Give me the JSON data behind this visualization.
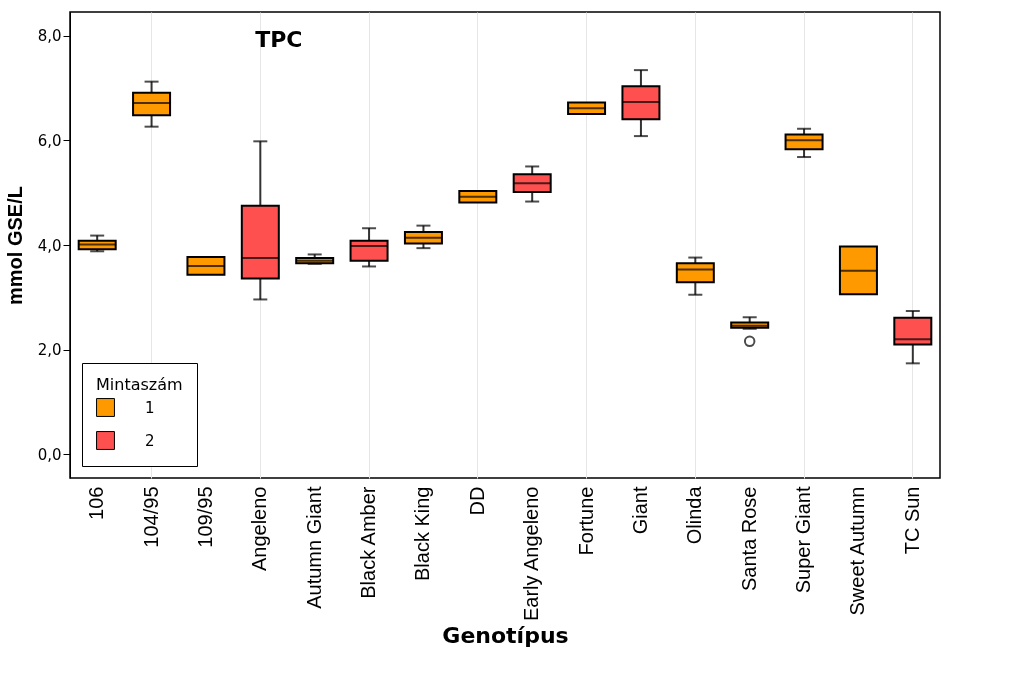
{
  "chart_data": {
    "type": "box",
    "title": "TPC",
    "xlabel": "Genotípus",
    "ylabel": "mmol GSE/L",
    "legend_title": "Mintaszám",
    "categories": [
      "106",
      "104/95",
      "109/95",
      "Angeleno",
      "Autumn Giant",
      "Black Amber",
      "Black King",
      "DD",
      "Early Angeleno",
      "Fortune",
      "Giant",
      "Olinda",
      "Santa Rose",
      "Super Giant",
      "Sweet Autumn",
      "TC Sun"
    ],
    "series": [
      {
        "name": "1",
        "color": "#ff9900",
        "boxes": [
          {
            "low": 3.88,
            "q1": 3.92,
            "median": 4.01,
            "q3": 4.08,
            "high": 4.18
          },
          {
            "low": 6.26,
            "q1": 6.48,
            "median": 6.71,
            "q3": 6.91,
            "high": 7.12
          },
          {
            "low": 3.43,
            "q1": 3.43,
            "median": 3.6,
            "q3": 3.77,
            "high": 3.77
          },
          null,
          {
            "low": 3.64,
            "q1": 3.65,
            "median": 3.7,
            "q3": 3.75,
            "high": 3.82
          },
          null,
          {
            "low": 3.94,
            "q1": 4.03,
            "median": 4.14,
            "q3": 4.25,
            "high": 4.37
          },
          {
            "low": 4.81,
            "q1": 4.81,
            "median": 4.92,
            "q3": 5.03,
            "high": 5.03
          },
          null,
          {
            "low": 6.5,
            "q1": 6.5,
            "median": 6.61,
            "q3": 6.72,
            "high": 6.72
          },
          null,
          {
            "low": 3.05,
            "q1": 3.29,
            "median": 3.53,
            "q3": 3.65,
            "high": 3.76
          },
          {
            "low": 2.4,
            "q1": 2.42,
            "median": 2.46,
            "q3": 2.52,
            "high": 2.62,
            "outliers": [
              2.16
            ]
          },
          {
            "low": 5.68,
            "q1": 5.83,
            "median": 6.0,
            "q3": 6.11,
            "high": 6.22
          },
          {
            "low": 3.06,
            "q1": 3.06,
            "median": 3.51,
            "q3": 3.97,
            "high": 3.97
          },
          null
        ]
      },
      {
        "name": "2",
        "color": "#ff5050",
        "boxes": [
          null,
          null,
          null,
          {
            "low": 2.96,
            "q1": 3.36,
            "median": 3.75,
            "q3": 4.75,
            "high": 5.98
          },
          null,
          {
            "low": 3.59,
            "q1": 3.7,
            "median": 3.98,
            "q3": 4.08,
            "high": 4.32
          },
          null,
          null,
          {
            "low": 4.83,
            "q1": 5.01,
            "median": 5.18,
            "q3": 5.35,
            "high": 5.5
          },
          null,
          {
            "low": 6.08,
            "q1": 6.4,
            "median": 6.73,
            "q3": 7.03,
            "high": 7.34
          },
          null,
          null,
          null,
          null,
          {
            "low": 1.74,
            "q1": 2.1,
            "median": 2.2,
            "q3": 2.61,
            "high": 2.74
          }
        ]
      }
    ],
    "ylim": [
      -0.45,
      8.45
    ],
    "yticks": [
      {
        "value": 0,
        "label": "0,0"
      },
      {
        "value": 2,
        "label": "2,0"
      },
      {
        "value": 4,
        "label": "4,0"
      },
      {
        "value": 6,
        "label": "6,0"
      },
      {
        "value": 8,
        "label": "8,0"
      }
    ],
    "grid": "x",
    "legend": "bottom left"
  }
}
